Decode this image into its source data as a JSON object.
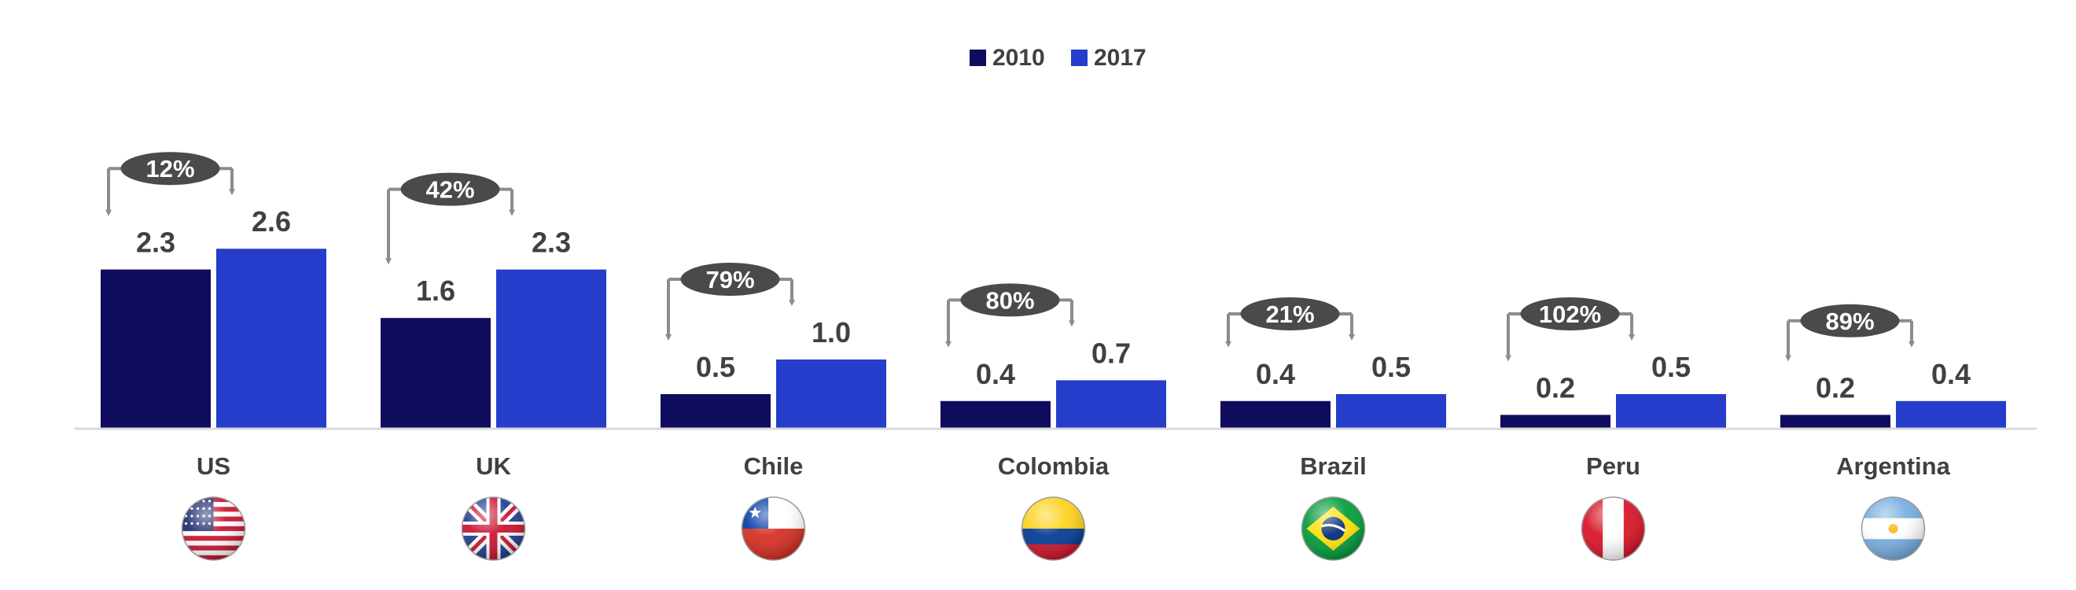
{
  "chart_data": {
    "type": "bar",
    "categories": [
      "US",
      "UK",
      "Chile",
      "Colombia",
      "Brazil",
      "Peru",
      "Argentina"
    ],
    "series": [
      {
        "name": "2010",
        "color": "#0f0c5e",
        "values": [
          2.3,
          1.6,
          0.5,
          0.4,
          0.4,
          0.2,
          0.2
        ],
        "labels": [
          "2.3",
          "1.6",
          "0.5",
          "0.4",
          "0.4",
          "0.2",
          "0.2"
        ]
      },
      {
        "name": "2017",
        "color": "#263ccb",
        "values": [
          2.6,
          2.3,
          1.0,
          0.7,
          0.5,
          0.5,
          0.4
        ],
        "labels": [
          "2.6",
          "2.3",
          "1.0",
          "0.7",
          "0.5",
          "0.5",
          "0.4"
        ]
      }
    ],
    "growth_labels": [
      "12%",
      "42%",
      "79%",
      "80%",
      "21%",
      "102%",
      "89%"
    ],
    "flag_icons": [
      "us-flag-icon",
      "uk-flag-icon",
      "chile-flag-icon",
      "colombia-flag-icon",
      "brazil-flag-icon",
      "peru-flag-icon",
      "argentina-flag-icon"
    ],
    "ylim": [
      0,
      2.9
    ],
    "legend_position": "top-center",
    "grid": false,
    "title": "",
    "xlabel": "",
    "ylabel": "",
    "colors": {
      "axis": "#d9d9d9",
      "label": "#404040",
      "bubble": "#4a4a4a",
      "arrow": "#8c8c8c"
    }
  }
}
